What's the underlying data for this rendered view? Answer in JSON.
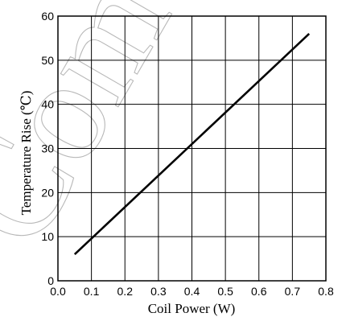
{
  "watermark": "Com",
  "chart_data": {
    "type": "line",
    "xlabel": "Coil Power (W)",
    "ylabel": "Temperature Rise (℃)",
    "xlim": [
      0,
      0.8
    ],
    "ylim": [
      0,
      60
    ],
    "x_ticks": [
      "0.0",
      "0.1",
      "0.2",
      "0.3",
      "0.4",
      "0.5",
      "0.6",
      "0.7",
      "0.8"
    ],
    "y_ticks": [
      "0",
      "10",
      "20",
      "30",
      "40",
      "50",
      "60"
    ],
    "grid": true,
    "series": [
      {
        "x": [
          0.05,
          0.75
        ],
        "y": [
          6,
          56
        ],
        "color": "#000000"
      }
    ]
  }
}
